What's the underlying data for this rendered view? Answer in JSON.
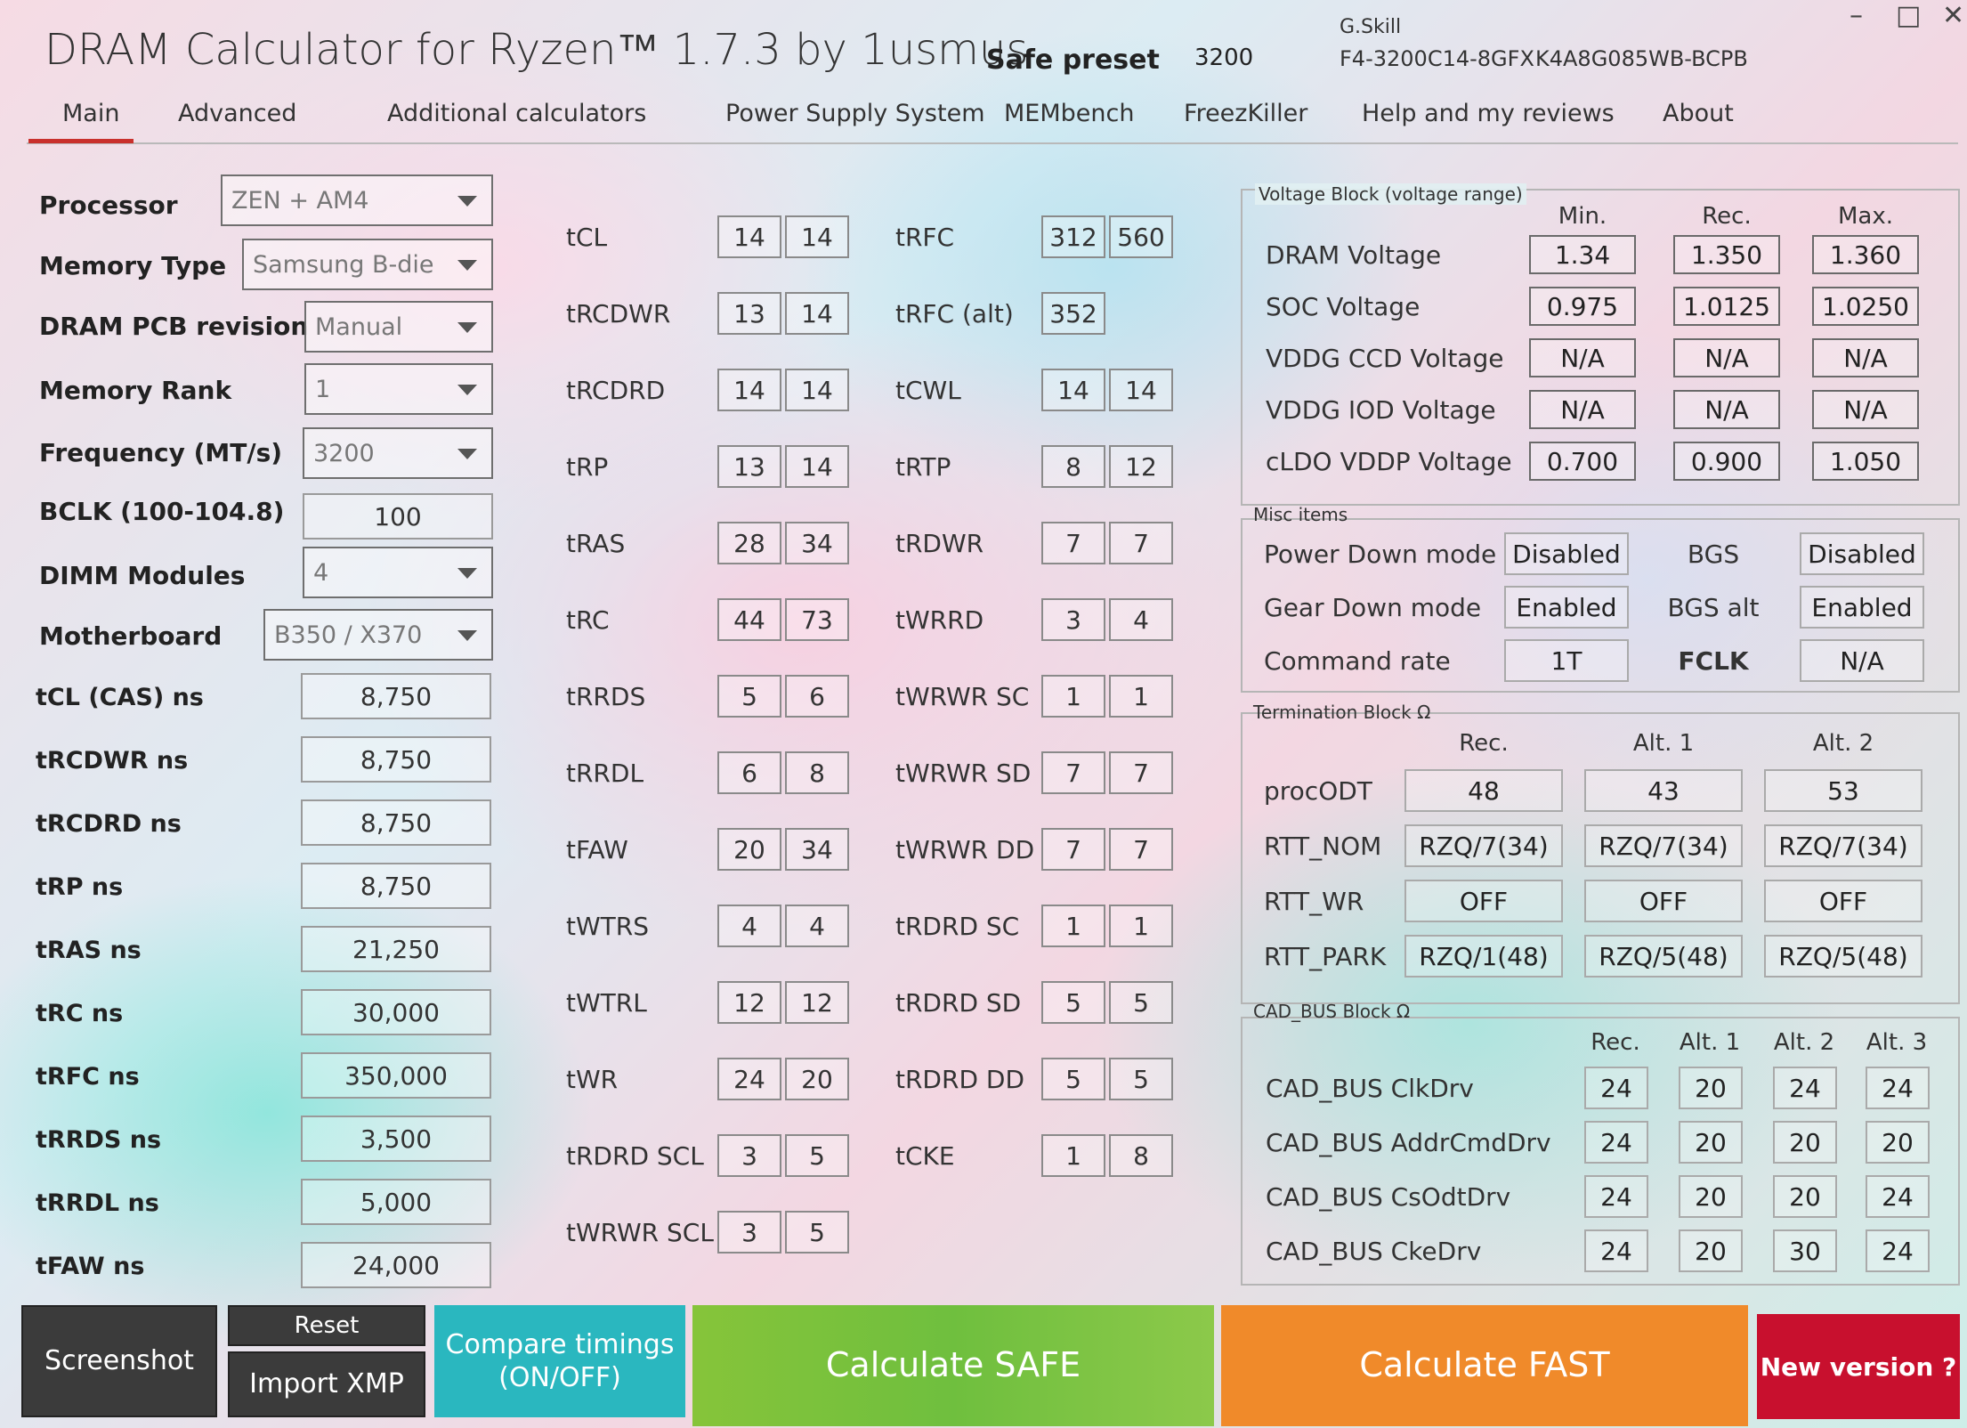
{
  "header": {
    "title": "DRAM Calculator for Ryzen™ 1.7.3 by 1usmus",
    "preset_label": "Safe preset",
    "preset_value": "3200",
    "brand": "G.Skill",
    "part_number": "F4-3200C14-8GFX",
    "chip_code": "K4A8G085WB-BCPB"
  },
  "window": {
    "minimize": "–",
    "maximize": "□",
    "close": "✕"
  },
  "tabs": [
    "Main",
    "Advanced",
    "Additional calculators",
    "Power Supply System",
    "MEMbench",
    "FreezKiller",
    "Help and my reviews",
    "About"
  ],
  "settings": {
    "processor": {
      "label": "Processor",
      "value": "ZEN + AM4"
    },
    "memory_type": {
      "label": "Memory Type",
      "value": "Samsung B-die"
    },
    "pcb_revision": {
      "label": "DRAM PCB revision",
      "value": "Manual"
    },
    "memory_rank": {
      "label": "Memory Rank",
      "value": "1"
    },
    "frequency": {
      "label": "Frequency (MT/s)",
      "value": "3200"
    },
    "bclk": {
      "label": "BCLK (100-104.8)",
      "value": "100"
    },
    "dimm_modules": {
      "label": "DIMM Modules",
      "value": "4"
    },
    "motherboard": {
      "label": "Motherboard",
      "value": "B350 / X370"
    }
  },
  "ns_values": [
    {
      "label": "tCL (CAS) ns",
      "value": "8,750"
    },
    {
      "label": "tRCDWR ns",
      "value": "8,750"
    },
    {
      "label": "tRCDRD ns",
      "value": "8,750"
    },
    {
      "label": "tRP ns",
      "value": "8,750"
    },
    {
      "label": "tRAS ns",
      "value": "21,250"
    },
    {
      "label": "tRC ns",
      "value": "30,000"
    },
    {
      "label": "tRFC ns",
      "value": "350,000"
    },
    {
      "label": "tRRDS ns",
      "value": "3,500"
    },
    {
      "label": "tRRDL ns",
      "value": "5,000"
    },
    {
      "label": "tFAW ns",
      "value": "24,000"
    }
  ],
  "timings_left": [
    {
      "label": "tCL",
      "a": "14",
      "b": "14"
    },
    {
      "label": "tRCDWR",
      "a": "13",
      "b": "14"
    },
    {
      "label": "tRCDRD",
      "a": "14",
      "b": "14"
    },
    {
      "label": "tRP",
      "a": "13",
      "b": "14"
    },
    {
      "label": "tRAS",
      "a": "28",
      "b": "34"
    },
    {
      "label": "tRC",
      "a": "44",
      "b": "73"
    },
    {
      "label": "tRRDS",
      "a": "5",
      "b": "6"
    },
    {
      "label": "tRRDL",
      "a": "6",
      "b": "8"
    },
    {
      "label": "tFAW",
      "a": "20",
      "b": "34"
    },
    {
      "label": "tWTRS",
      "a": "4",
      "b": "4"
    },
    {
      "label": "tWTRL",
      "a": "12",
      "b": "12"
    },
    {
      "label": "tWR",
      "a": "24",
      "b": "20"
    },
    {
      "label": "tRDRD SCL",
      "a": "3",
      "b": "5"
    },
    {
      "label": "tWRWR SCL",
      "a": "3",
      "b": "5"
    }
  ],
  "timings_right": [
    {
      "label": "tRFC",
      "a": "312",
      "b": "560"
    },
    {
      "label": "tRFC (alt)",
      "a": "352",
      "b": ""
    },
    {
      "label": "tCWL",
      "a": "14",
      "b": "14"
    },
    {
      "label": "tRTP",
      "a": "8",
      "b": "12"
    },
    {
      "label": "tRDWR",
      "a": "7",
      "b": "7"
    },
    {
      "label": "tWRRD",
      "a": "3",
      "b": "4"
    },
    {
      "label": "tWRWR SC",
      "a": "1",
      "b": "1"
    },
    {
      "label": "tWRWR SD",
      "a": "7",
      "b": "7"
    },
    {
      "label": "tWRWR DD",
      "a": "7",
      "b": "7"
    },
    {
      "label": "tRDRD SC",
      "a": "1",
      "b": "1"
    },
    {
      "label": "tRDRD SD",
      "a": "5",
      "b": "5"
    },
    {
      "label": "tRDRD DD",
      "a": "5",
      "b": "5"
    },
    {
      "label": "tCKE",
      "a": "1",
      "b": "8"
    }
  ],
  "voltage": {
    "title": "Voltage Block (voltage range)",
    "headers": [
      "Min.",
      "Rec.",
      "Max."
    ],
    "rows": [
      {
        "label": "DRAM Voltage",
        "values": [
          "1.34",
          "1.350",
          "1.360"
        ]
      },
      {
        "label": "SOC Voltage",
        "values": [
          "0.975",
          "1.0125",
          "1.0250"
        ]
      },
      {
        "label": "VDDG  CCD Voltage",
        "values": [
          "N/A",
          "N/A",
          "N/A"
        ]
      },
      {
        "label": "VDDG  IOD Voltage",
        "values": [
          "N/A",
          "N/A",
          "N/A"
        ]
      },
      {
        "label": "cLDO VDDP Voltage",
        "values": [
          "0.700",
          "0.900",
          "1.050"
        ]
      }
    ]
  },
  "misc": {
    "title": "Misc items",
    "rows": [
      {
        "label": "Power Down mode",
        "value": "Disabled",
        "label2": "BGS",
        "value2": "Disabled"
      },
      {
        "label": "Gear Down mode",
        "value": "Enabled",
        "label2": "BGS alt",
        "value2": "Enabled"
      },
      {
        "label": "Command rate",
        "value": "1T",
        "label2": "FCLK",
        "value2": "N/A"
      }
    ]
  },
  "termination": {
    "title": "Termination Block Ω",
    "headers": [
      "Rec.",
      "Alt. 1",
      "Alt. 2"
    ],
    "rows": [
      {
        "label": "procODT",
        "values": [
          "48",
          "43",
          "53"
        ]
      },
      {
        "label": "RTT_NOM",
        "values": [
          "RZQ/7(34)",
          "RZQ/7(34)",
          "RZQ/7(34)"
        ]
      },
      {
        "label": "RTT_WR",
        "values": [
          "OFF",
          "OFF",
          "OFF"
        ]
      },
      {
        "label": "RTT_PARK",
        "values": [
          "RZQ/1(48)",
          "RZQ/5(48)",
          "RZQ/5(48)"
        ]
      }
    ]
  },
  "cad_bus": {
    "title": "CAD_BUS Block Ω",
    "headers": [
      "Rec.",
      "Alt. 1",
      "Alt. 2",
      "Alt. 3"
    ],
    "rows": [
      {
        "label": "CAD_BUS ClkDrv",
        "values": [
          "24",
          "20",
          "24",
          "24"
        ]
      },
      {
        "label": "CAD_BUS AddrCmdDrv",
        "values": [
          "24",
          "20",
          "20",
          "20"
        ]
      },
      {
        "label": "CAD_BUS CsOdtDrv",
        "values": [
          "24",
          "20",
          "20",
          "24"
        ]
      },
      {
        "label": "CAD_BUS CkeDrv",
        "values": [
          "24",
          "20",
          "30",
          "24"
        ]
      }
    ]
  },
  "buttons": {
    "screenshot": "Screenshot",
    "reset": "Reset",
    "import_xmp": "Import XMP",
    "compare_line1": "Compare timings",
    "compare_line2": "(ON/OFF)",
    "calc_safe": "Calculate SAFE",
    "calc_fast": "Calculate FAST",
    "new_version": "New version ?"
  },
  "colors": {
    "tab_accent": "#c9302c",
    "btn_dark": "#3b3b3b",
    "btn_compare": "#2ab7bf",
    "btn_safe": "#7bc23a",
    "btn_fast": "#f08a2a",
    "btn_new": "#c8102e"
  }
}
